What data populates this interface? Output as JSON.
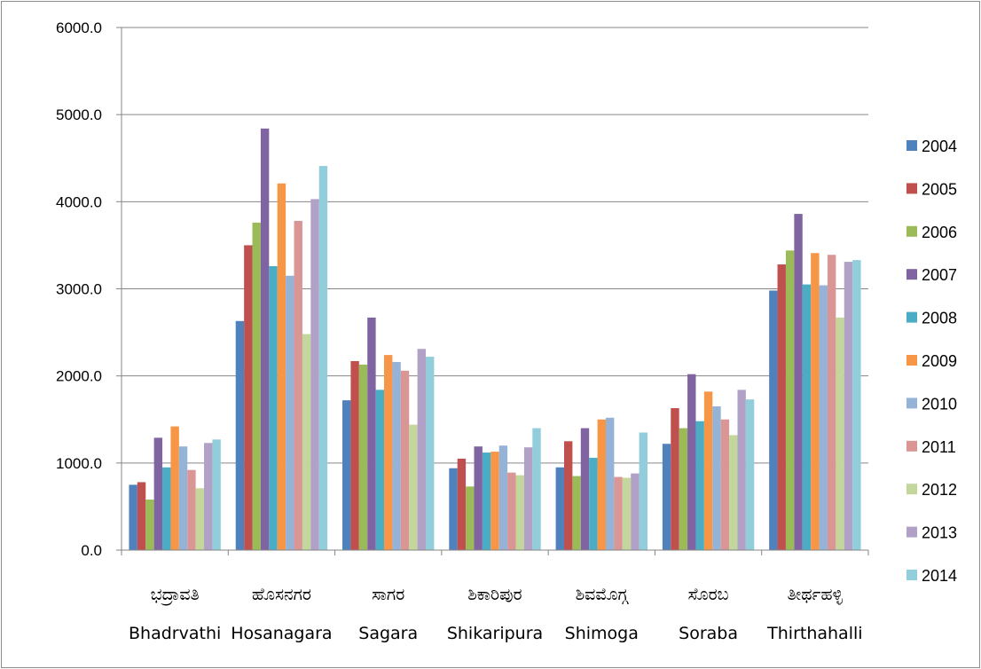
{
  "chart_data": {
    "type": "bar",
    "title": "",
    "xlabel": "",
    "ylabel": "",
    "ylim": [
      0,
      6000
    ],
    "ytick_labels": [
      "0.0",
      "1000.0",
      "2000.0",
      "3000.0",
      "4000.0",
      "5000.0",
      "6000.0"
    ],
    "grid": true,
    "legend_position": "right",
    "categories": [
      {
        "kannada": "ಭದ್ರಾವತಿ",
        "english": "Bhadrvathi"
      },
      {
        "kannada": "ಹೊಸನಗರ",
        "english": "Hosanagara"
      },
      {
        "kannada": "ಸಾಗರ",
        "english": "Sagara"
      },
      {
        "kannada": "ಶಿಕಾರಿಪುರ",
        "english": "Shikaripura"
      },
      {
        "kannada": "ಶಿವಮೊಗ್ಗ",
        "english": "Shimoga"
      },
      {
        "kannada": "ಸೊರಬ",
        "english": "Soraba"
      },
      {
        "kannada": "ತೀರ್ಥಹಳ್ಳಿ",
        "english": "Thirthahalli"
      }
    ],
    "series": [
      {
        "name": "2004",
        "color": "#4f81bd",
        "values": [
          750,
          2630,
          1720,
          940,
          950,
          1220,
          2980
        ]
      },
      {
        "name": "2005",
        "color": "#c0504d",
        "values": [
          780,
          3500,
          2170,
          1050,
          1250,
          1630,
          3280
        ]
      },
      {
        "name": "2006",
        "color": "#9bbb59",
        "values": [
          580,
          3760,
          2130,
          730,
          850,
          1400,
          3440
        ]
      },
      {
        "name": "2007",
        "color": "#8064a2",
        "values": [
          1290,
          4840,
          2670,
          1190,
          1400,
          2020,
          3860
        ]
      },
      {
        "name": "2008",
        "color": "#4bacc6",
        "values": [
          950,
          3260,
          1840,
          1120,
          1060,
          1480,
          3050
        ]
      },
      {
        "name": "2009",
        "color": "#f79646",
        "values": [
          1420,
          4210,
          2240,
          1130,
          1500,
          1820,
          3410
        ]
      },
      {
        "name": "2010",
        "color": "#95b3d7",
        "values": [
          1190,
          3150,
          2160,
          1200,
          1520,
          1650,
          3040
        ]
      },
      {
        "name": "2011",
        "color": "#da9694",
        "values": [
          920,
          3780,
          2060,
          890,
          840,
          1500,
          3390
        ]
      },
      {
        "name": "2012",
        "color": "#c3d69b",
        "values": [
          710,
          2480,
          1440,
          860,
          830,
          1320,
          2670
        ]
      },
      {
        "name": "2013",
        "color": "#b2a1c7",
        "values": [
          1230,
          4030,
          2310,
          1180,
          880,
          1840,
          3310
        ]
      },
      {
        "name": "2014",
        "color": "#92cddc",
        "values": [
          1270,
          4410,
          2220,
          1400,
          1350,
          1730,
          3330
        ]
      }
    ]
  }
}
